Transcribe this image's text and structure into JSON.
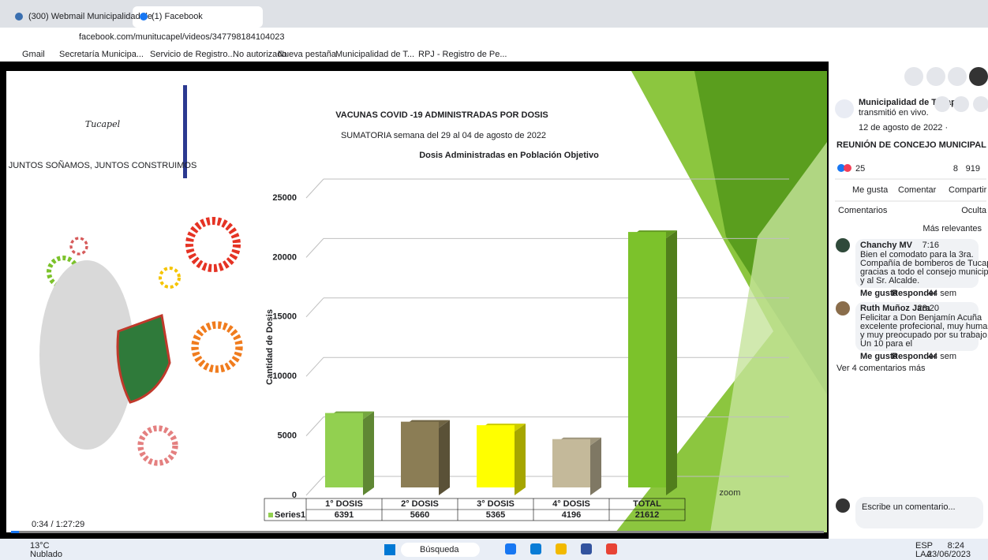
{
  "browser": {
    "tabs": [
      "(300) Webmail Municipalidad de",
      "(1) Facebook"
    ],
    "url": "facebook.com/munitucapel/videos/347798184104023",
    "bookmarks": [
      "Gmail",
      "Secretaría Municipa...",
      "Servicio de Registro...",
      "No autorizado",
      "Nueva pestaña",
      "Municipalidad de T...",
      "RPJ - Registro de Pe..."
    ]
  },
  "video": {
    "logo": "Tucapel",
    "slogan": "JUNTOS SOÑAMOS, JUNTOS CONSTRUIMOS",
    "watermark": "zoom",
    "time": "0:34 / 1:27:29",
    "chart": {
      "type": "bar",
      "title": "VACUNAS  COVID -19 ADMINISTRADAS POR DOSIS",
      "subtitle": "SUMATORIA semana del 29 al 04 de agosto de 2022",
      "heading": "Dosis Administradas en Población Objetivo",
      "y_label": "Cantidad de Dosis",
      "categories": [
        "1° DOSIS",
        "2° DOSIS",
        "3° DOSIS",
        "4° DOSIS",
        "TOTAL"
      ],
      "series": [
        {
          "name": "Series1",
          "colors": [
            "#92d050",
            "#8b7d55",
            "#ffff00",
            "#c4b99a",
            "#7cc22b"
          ],
          "values": [
            6391,
            5660,
            5365,
            4196,
            21612
          ]
        }
      ],
      "ylim": [
        0,
        25000
      ],
      "yticks": [
        0,
        5000,
        10000,
        15000,
        20000,
        25000
      ],
      "grid": true
    }
  },
  "post": {
    "page": "Municipalidad de Tucapel",
    "action": "transmitió en vivo.",
    "date": "12 de agosto de 2022 ·",
    "title": "REUNIÓN DE CONCEJO MUNICIPAL",
    "reactions": "25",
    "comments_count": "8",
    "shares": "919",
    "buttons": [
      "Me gusta",
      "Comentar",
      "Compartir"
    ],
    "comments_label": "Comentarios",
    "hide": "Oculta",
    "sort": "Más relevantes",
    "comments": [
      {
        "author": "Chanchy MV",
        "time": "7:16",
        "lines": [
          "Bien el comodato para la 3ra.",
          "Compañía de bomberos de Tucapel,",
          "gracias a todo el consejo municipal",
          "y al Sr. Alcalde."
        ],
        "like": "Me gusta",
        "reply": "Responder",
        "age": "44 sem"
      },
      {
        "author": "Ruth Muñoz Jara",
        "time": "23:20",
        "lines": [
          "Felicitar a Don Benjamín Acuña",
          "excelente profecional, muy humano",
          "y muy preocupado por su trabajo.",
          "Un 10 para el"
        ],
        "like": "Me gusta",
        "reply": "Responder",
        "age": "44 sem"
      }
    ],
    "more": "Ver 4 comentarios más",
    "input": "Escribe un comentario..."
  },
  "taskbar": {
    "temp": "13°C",
    "weather": "Nublado",
    "search": "Búsqueda",
    "lang": "ESP",
    "layout": "LAA",
    "time": "8:24",
    "date": "23/06/2023"
  }
}
